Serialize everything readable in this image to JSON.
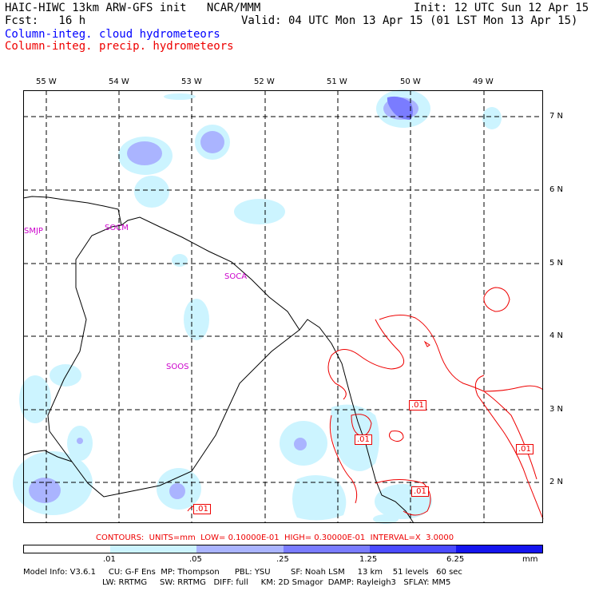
{
  "header": {
    "title": "HAIC-HIWC 13km ARW-GFS init   NCAR/MMM",
    "init": "Init: 12 UTC Sun 12 Apr 15",
    "fcst": "Fcst:   16 h",
    "valid": "Valid: 04 UTC Mon 13 Apr 15 (01 LST Mon 13 Apr 15)",
    "field1": "Column-integ. cloud hydrometeors",
    "field2": "Column-integ. precip. hydrometeors",
    "field1_color": "#0000ff",
    "field2_color": "#ee0000"
  },
  "map": {
    "lon_labels": [
      "55 W",
      "54 W",
      "53 W",
      "52 W",
      "51 W",
      "50 W",
      "49 W"
    ],
    "lat_labels": [
      "7 N",
      "6 N",
      "5 N",
      "4 N",
      "3 N",
      "2 N"
    ],
    "stations": [
      "SMJP",
      "SOCM",
      "SOCA",
      "SOOS"
    ],
    "contour_labels": [
      ".01",
      ".01",
      ".01",
      ".01",
      ".01"
    ]
  },
  "contours_line": "CONTOURS:  UNITS=mm  LOW= 0.10000E-01  HIGH= 0.30000E-01  INTERVAL=X  3.0000",
  "legend": {
    "labels": [
      ".01",
      ".05",
      ".25",
      "1.25",
      "6.25"
    ],
    "unit": "mm",
    "colors": [
      "#ffffff",
      "#ccf4ff",
      "#aab4ff",
      "#7a7cff",
      "#4b4bff",
      "#1515ee"
    ]
  },
  "model_info": {
    "line1": "Model Info: V3.6.1     CU: G-F Ens  MP: Thompson      PBL: YSU        SF: Noah LSM     13 km    51 levels   60 sec",
    "line2": "LW: RRTMG     SW: RRTMG   DIFF: full     KM: 2D Smagor  DAMP: Rayleigh3   SFLAY: MM5"
  }
}
